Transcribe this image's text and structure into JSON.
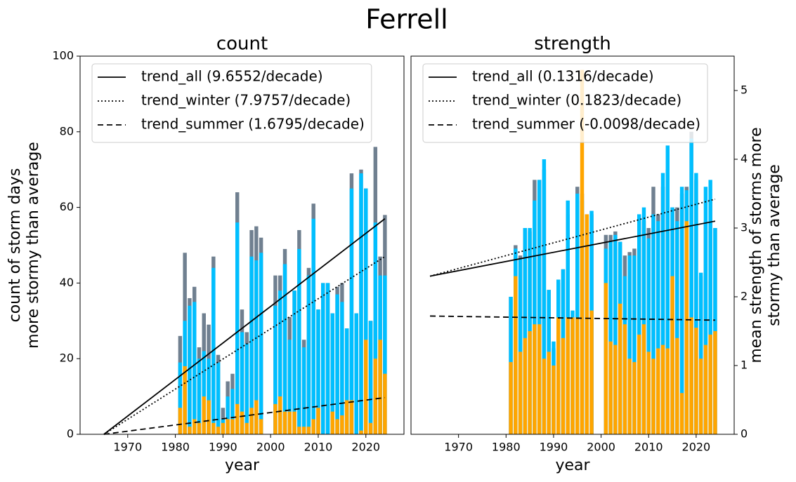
{
  "title": "Ferrell",
  "chart_data": [
    {
      "type": "bar",
      "title": "count",
      "xlabel": "year",
      "ylabel": [
        "count of storm days",
        "more stormy than average"
      ],
      "yaxis_side": "left",
      "x": [
        1981,
        1982,
        1983,
        1984,
        1985,
        1986,
        1987,
        1988,
        1989,
        1990,
        1991,
        1992,
        1993,
        1994,
        1995,
        1996,
        1997,
        1998,
        1999,
        2000,
        2001,
        2002,
        2003,
        2004,
        2005,
        2006,
        2007,
        2008,
        2009,
        2010,
        2011,
        2012,
        2013,
        2014,
        2015,
        2016,
        2017,
        2018,
        2019,
        2020,
        2021,
        2022,
        2023,
        2024
      ],
      "xlim": [
        1960,
        2028
      ],
      "xticks": [
        1970,
        1980,
        1990,
        2000,
        2010,
        2020
      ],
      "ylim": [
        0,
        100
      ],
      "yticks": [
        0,
        20,
        40,
        60,
        80,
        100
      ],
      "series": [
        {
          "color": "#708090",
          "values": [
            26,
            48,
            36,
            39,
            23,
            32,
            29,
            47,
            21,
            7,
            14,
            16,
            64,
            33,
            27,
            54,
            55,
            52,
            null,
            null,
            42,
            42,
            49,
            31,
            38,
            54,
            25,
            44,
            61,
            33,
            40,
            40,
            32,
            39,
            40,
            28,
            69,
            32,
            70,
            65,
            30,
            76,
            47,
            58
          ]
        },
        {
          "color": "#00bfff",
          "values": [
            19,
            30,
            34,
            35,
            20,
            22,
            20,
            44,
            19,
            4,
            10,
            12,
            56,
            27,
            24,
            47,
            46,
            48,
            null,
            null,
            34,
            38,
            45,
            25,
            38,
            49,
            23,
            42,
            57,
            33,
            40,
            40,
            32,
            37,
            35,
            28,
            65,
            32,
            69,
            65,
            30,
            56,
            42,
            42
          ]
        },
        {
          "color": "#ffa500",
          "values": [
            7,
            18,
            2,
            4,
            3,
            10,
            9,
            3,
            2,
            3,
            4,
            4,
            8,
            6,
            3,
            7,
            9,
            4,
            null,
            null,
            8,
            10,
            6,
            6,
            6,
            2,
            2,
            2,
            4,
            7,
            0,
            0,
            6,
            4,
            5,
            9,
            9,
            0,
            1,
            25,
            3,
            20,
            25,
            16
          ]
        }
      ],
      "trends": [
        {
          "name": "trend_all (9.6552/decade)",
          "linestyle": "solid",
          "color": "#000000",
          "x": [
            1965,
            2024
          ],
          "values": [
            0,
            57
          ]
        },
        {
          "name": "trend_winter (7.9757/decade)",
          "linestyle": "dotted",
          "color": "#000000",
          "x": [
            1965,
            2024
          ],
          "values": [
            0,
            47
          ]
        },
        {
          "name": "trend_summer (1.6795/decade)",
          "linestyle": "dashed",
          "color": "#000000",
          "x": [
            1965,
            2024
          ],
          "values": [
            0,
            9.7
          ]
        }
      ]
    },
    {
      "type": "bar",
      "title": "strength",
      "xlabel": "year",
      "ylabel": [
        "mean strength of storms more",
        "stormy than average"
      ],
      "yaxis_side": "right",
      "x": [
        1981,
        1982,
        1983,
        1984,
        1985,
        1986,
        1987,
        1988,
        1989,
        1990,
        1991,
        1992,
        1993,
        1994,
        1995,
        1996,
        1997,
        1998,
        1999,
        2000,
        2001,
        2002,
        2003,
        2004,
        2005,
        2006,
        2007,
        2008,
        2009,
        2010,
        2011,
        2012,
        2013,
        2014,
        2015,
        2016,
        2017,
        2018,
        2019,
        2020,
        2021,
        2022,
        2023,
        2024
      ],
      "xlim": [
        1960,
        2028
      ],
      "xticks": [
        1970,
        1980,
        1990,
        2000,
        2010,
        2020
      ],
      "ylim": [
        0,
        5.5
      ],
      "yticks": [
        0,
        1,
        2,
        3,
        4,
        5
      ],
      "series": [
        {
          "color": "#708090",
          "values": [
            2.0,
            2.75,
            2.6,
            3.0,
            2.95,
            3.7,
            3.7,
            3.85,
            2.1,
            1.25,
            2.2,
            2.4,
            3.2,
            1.7,
            3.6,
            3.5,
            2.8,
            3.2,
            null,
            null,
            2.9,
            2.9,
            2.95,
            2.8,
            2.6,
            2.65,
            2.7,
            3.1,
            3.1,
            3.0,
            3.6,
            3.2,
            3.6,
            3.85,
            3.3,
            3.3,
            3.5,
            3.6,
            4.4,
            3.7,
            2.3,
            3.1,
            3.4,
            3.0
          ]
        },
        {
          "color": "#00bfff",
          "values": [
            2.0,
            2.7,
            2.55,
            3.0,
            3.0,
            3.4,
            3.7,
            4.0,
            2.1,
            1.35,
            2.25,
            2.4,
            3.4,
            1.8,
            3.5,
            3.4,
            2.6,
            3.25,
            null,
            null,
            2.7,
            2.8,
            2.9,
            2.8,
            2.3,
            2.6,
            2.6,
            3.2,
            3.3,
            2.85,
            3.2,
            3.1,
            3.8,
            4.2,
            3.3,
            3.1,
            3.6,
            3.55,
            4.3,
            3.8,
            2.35,
            3.6,
            3.7,
            3.0
          ]
        },
        {
          "color": "#ffa500",
          "values": [
            1.05,
            2.3,
            1.2,
            1.4,
            1.5,
            1.6,
            1.6,
            1.1,
            1.2,
            1.0,
            1.7,
            1.4,
            1.7,
            1.7,
            1.7,
            5.3,
            3.2,
            1.8,
            null,
            null,
            2.2,
            1.35,
            1.3,
            1.9,
            1.6,
            1.1,
            1.05,
            1.45,
            1.6,
            1.2,
            1.1,
            1.25,
            1.3,
            1.25,
            2.3,
            1.4,
            0.6,
            3.1,
            1.7,
            1.55,
            1.1,
            1.3,
            1.45,
            1.5
          ]
        }
      ],
      "trends": [
        {
          "name": "trend_all (0.1316/decade)",
          "linestyle": "solid",
          "color": "#000000",
          "x": [
            1964,
            2024
          ],
          "values": [
            2.3,
            3.1
          ]
        },
        {
          "name": "trend_winter (0.1823/decade)",
          "linestyle": "dotted",
          "color": "#000000",
          "x": [
            1964,
            2024
          ],
          "values": [
            2.3,
            3.42
          ]
        },
        {
          "name": "trend_summer (-0.0098/decade)",
          "linestyle": "dashed",
          "color": "#000000",
          "x": [
            1964,
            2024
          ],
          "values": [
            1.72,
            1.66
          ]
        }
      ]
    }
  ]
}
